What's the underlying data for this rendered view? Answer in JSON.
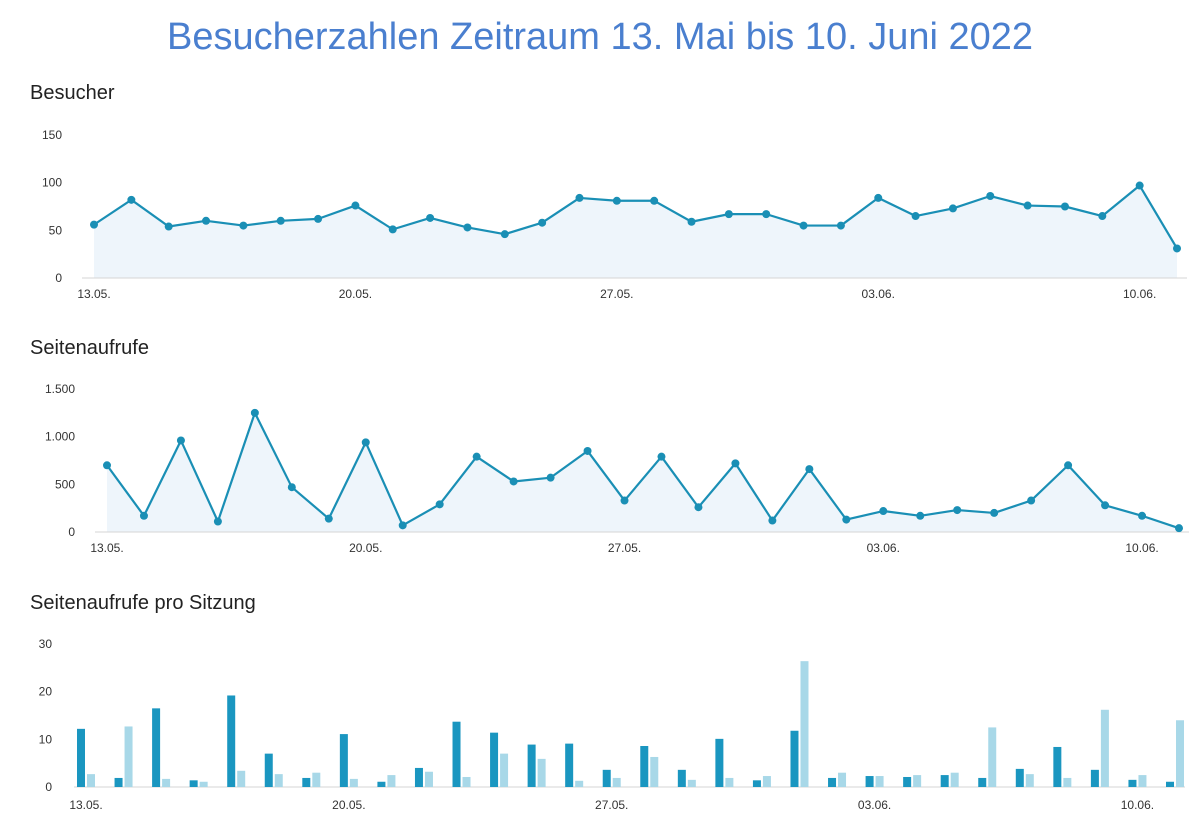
{
  "page": {
    "title": "Besucherzahlen Zeitraum 13. Mai bis 10. Juni 2022",
    "colors": {
      "title": "#4a7fcf",
      "line": "#1a8fb5",
      "fill": "#eef5fb",
      "bar_dark": "#1a96c0",
      "bar_light": "#a8d8e8"
    }
  },
  "chart_data": [
    {
      "type": "area",
      "title": "Besucher",
      "x": [
        "13.05.",
        "14.05.",
        "15.05.",
        "16.05.",
        "17.05.",
        "18.05.",
        "19.05.",
        "20.05.",
        "21.05.",
        "22.05.",
        "23.05.",
        "24.05.",
        "25.05.",
        "26.05.",
        "27.05.",
        "28.05.",
        "29.05.",
        "30.05.",
        "31.05.",
        "01.06.",
        "02.06.",
        "03.06.",
        "04.06.",
        "05.06.",
        "06.06.",
        "07.06.",
        "08.06.",
        "09.06.",
        "10.06.",
        "11.06."
      ],
      "x_tick_labels": [
        "13.05.",
        "20.05.",
        "27.05.",
        "03.06.",
        "10.06."
      ],
      "y_tick_labels": [
        "0",
        "50",
        "100",
        "150"
      ],
      "y_ticks": [
        0,
        50,
        100,
        150
      ],
      "ylim": [
        0,
        150
      ],
      "values": [
        56,
        82,
        54,
        60,
        55,
        60,
        62,
        76,
        51,
        63,
        53,
        46,
        58,
        84,
        81,
        81,
        59,
        67,
        67,
        55,
        55,
        84,
        65,
        73,
        86,
        76,
        75,
        65,
        97,
        31
      ],
      "grid": false
    },
    {
      "type": "area",
      "title": "Seitenaufrufe",
      "x": [
        "13.05.",
        "14.05.",
        "15.05.",
        "16.05.",
        "17.05.",
        "18.05.",
        "19.05.",
        "20.05.",
        "21.05.",
        "22.05.",
        "23.05.",
        "24.05.",
        "25.05.",
        "26.05.",
        "27.05.",
        "28.05.",
        "29.05.",
        "30.05.",
        "31.05.",
        "01.06.",
        "02.06.",
        "03.06.",
        "04.06.",
        "05.06.",
        "06.06.",
        "07.06.",
        "08.06.",
        "09.06.",
        "10.06.",
        "11.06."
      ],
      "x_tick_labels": [
        "13.05.",
        "20.05.",
        "27.05.",
        "03.06.",
        "10.06."
      ],
      "y_tick_labels": [
        "0",
        "500",
        "1.000",
        "1.500"
      ],
      "y_ticks": [
        0,
        500,
        1000,
        1500
      ],
      "ylim": [
        0,
        1500
      ],
      "values": [
        700,
        170,
        960,
        110,
        1250,
        470,
        140,
        940,
        70,
        290,
        790,
        530,
        570,
        850,
        330,
        790,
        260,
        720,
        120,
        660,
        130,
        220,
        170,
        230,
        200,
        330,
        700,
        280,
        170,
        40
      ],
      "grid": false
    },
    {
      "type": "bar",
      "title": "Seitenaufrufe pro Sitzung",
      "x": [
        "13.05.",
        "14.05.",
        "15.05.",
        "16.05.",
        "17.05.",
        "18.05.",
        "19.05.",
        "20.05.",
        "21.05.",
        "22.05.",
        "23.05.",
        "24.05.",
        "25.05.",
        "26.05.",
        "27.05.",
        "28.05.",
        "29.05.",
        "30.05.",
        "31.05.",
        "01.06.",
        "02.06.",
        "03.06.",
        "04.06.",
        "05.06.",
        "06.06.",
        "07.06.",
        "08.06.",
        "09.06.",
        "10.06.",
        "11.06."
      ],
      "x_tick_labels": [
        "13.05.",
        "20.05.",
        "27.05.",
        "03.06.",
        "10.06."
      ],
      "y_tick_labels": [
        "0",
        "10",
        "20",
        "30"
      ],
      "y_ticks": [
        0,
        10,
        20,
        30
      ],
      "ylim": [
        0,
        30
      ],
      "series": [
        {
          "values": [
            12.2,
            1.9,
            16.5,
            1.4,
            19.2,
            7.0,
            1.9,
            11.1,
            1.1,
            4.0,
            13.7,
            11.4,
            8.9,
            9.1,
            3.6,
            8.6,
            3.6,
            10.1,
            1.4,
            11.8,
            1.9,
            2.3,
            2.1,
            2.5,
            1.9,
            3.8,
            8.4,
            3.6,
            1.5,
            1.1
          ]
        },
        {
          "values": [
            2.7,
            12.7,
            1.7,
            1.1,
            3.4,
            2.7,
            3.0,
            1.7,
            2.5,
            3.2,
            2.1,
            7.0,
            5.9,
            1.3,
            1.9,
            6.3,
            1.5,
            1.9,
            2.3,
            26.4,
            3.0,
            2.3,
            2.5,
            3.0,
            12.5,
            2.7,
            1.9,
            16.2,
            2.5,
            14.0
          ]
        }
      ],
      "grid": false
    }
  ]
}
